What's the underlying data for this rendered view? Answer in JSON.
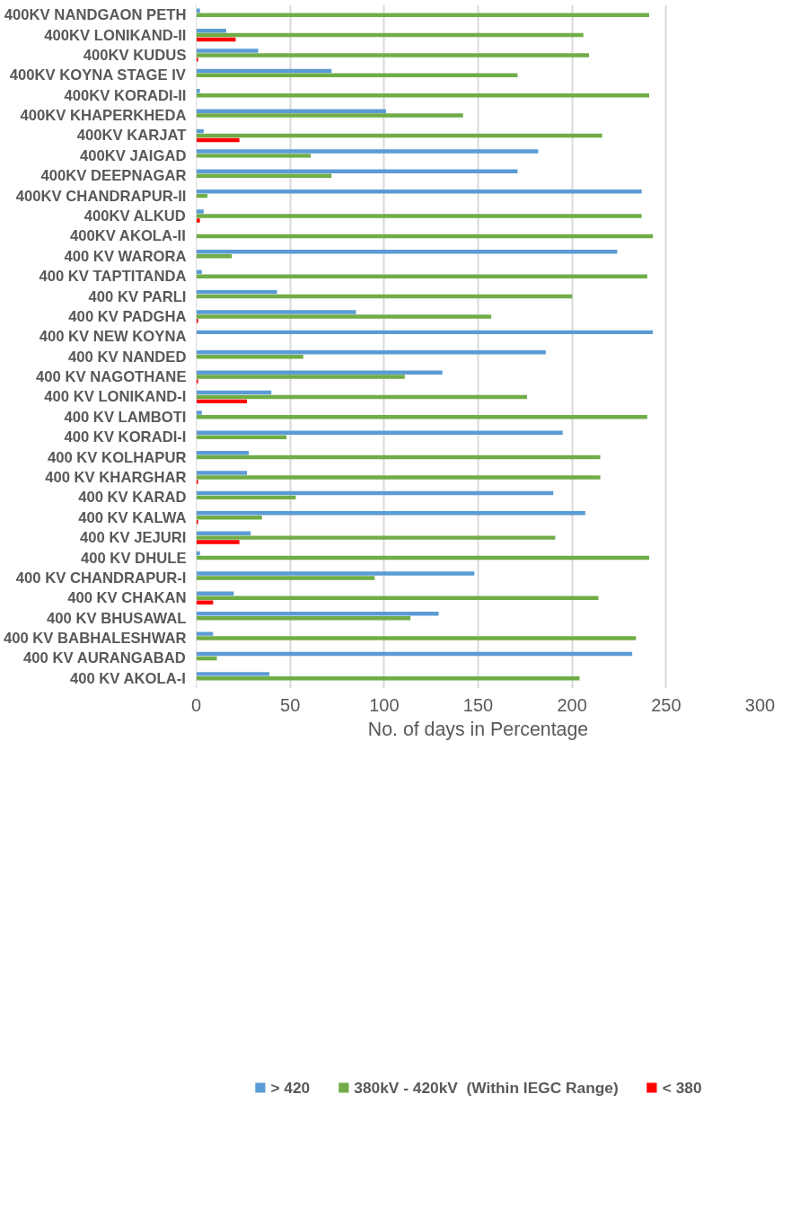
{
  "chart_data": {
    "type": "bar",
    "orientation": "horizontal",
    "xlabel": "No. of days in Percentage",
    "categories": [
      "400KV NANDGAON PETH",
      "400KV LONIKAND-II",
      "400KV KUDUS",
      "400KV KOYNA STAGE IV",
      "400KV KORADI-II",
      "400KV KHAPERKHEDA",
      "400KV KARJAT",
      "400KV JAIGAD",
      "400KV DEEPNAGAR",
      "400KV CHANDRAPUR-II",
      "400KV ALKUD",
      "400KV AKOLA-II",
      "400 KV WARORA",
      "400 KV TAPTITANDA",
      "400 KV PARLI",
      "400 KV PADGHA",
      "400 KV NEW KOYNA",
      "400 KV NANDED",
      "400 KV NAGOTHANE",
      "400 KV LONIKAND-I",
      "400 KV LAMBOTI",
      "400 KV KORADI-I",
      "400 KV KOLHAPUR",
      "400 KV KHARGHAR",
      "400 KV KARAD",
      "400 KV KALWA",
      "400 KV JEJURI",
      "400 KV DHULE",
      "400 KV CHANDRAPUR-I",
      "400 KV CHAKAN",
      "400 KV BHUSAWAL",
      "400 KV BABHALESHWAR",
      "400 KV AURANGABAD",
      "400 KV AKOLA-I"
    ],
    "series": [
      {
        "name": "> 420",
        "color": "#5b9bd5",
        "values": [
          2,
          16,
          33,
          72,
          2,
          101,
          4,
          182,
          171,
          237,
          4,
          0,
          224,
          3,
          43,
          85,
          243,
          186,
          131,
          40,
          3,
          195,
          28,
          27,
          190,
          207,
          29,
          2,
          148,
          20,
          129,
          9,
          232,
          39
        ]
      },
      {
        "name": "380kV - 420kV  (Within IEGC Range)",
        "color": "#70ad47",
        "values": [
          241,
          206,
          209,
          171,
          241,
          142,
          216,
          61,
          72,
          6,
          237,
          243,
          19,
          240,
          200,
          157,
          0,
          57,
          111,
          176,
          240,
          48,
          215,
          215,
          53,
          35,
          191,
          241,
          95,
          214,
          114,
          234,
          11,
          204
        ]
      },
      {
        "name": "< 380",
        "color": "#ff0000",
        "values": [
          0,
          21,
          1,
          0,
          0,
          0,
          23,
          0,
          0,
          0,
          2,
          0,
          0,
          0,
          0,
          1,
          0,
          0,
          1,
          27,
          0,
          0,
          0,
          1,
          0,
          1,
          23,
          0,
          0,
          9,
          0,
          0,
          0,
          0
        ]
      }
    ],
    "xlim": [
      0,
      300
    ],
    "xticks": [
      0,
      50,
      100,
      150,
      200,
      250,
      300
    ],
    "grid": "x",
    "legend": "bottom"
  }
}
